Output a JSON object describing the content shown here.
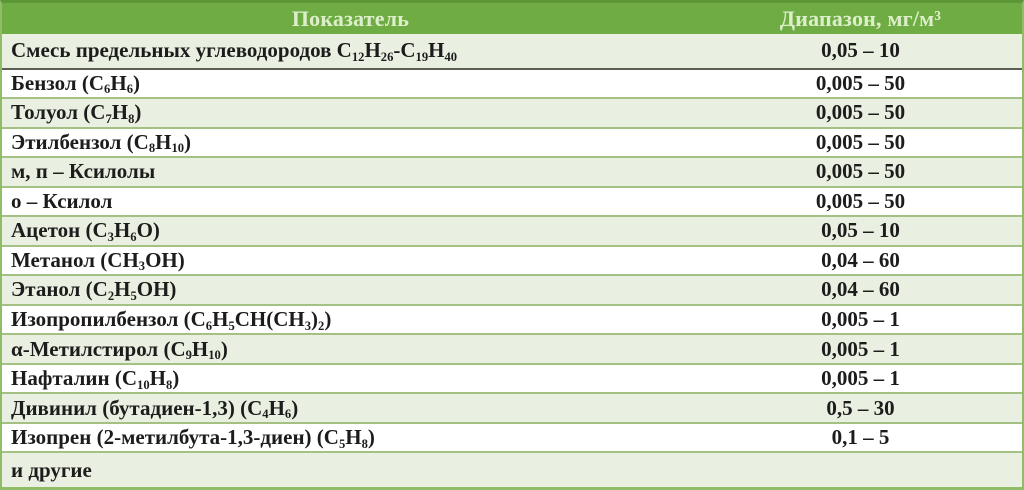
{
  "table": {
    "columns": [
      {
        "label": "Показатель"
      },
      {
        "label": "Диапазон, мг/м³"
      }
    ],
    "rows": [
      {
        "name": "Смесь предельных углеводородов C{12}H{26}-C{19}H{40}",
        "range": "0,05 – 10"
      },
      {
        "name": "Бензол (C{6}H{6})",
        "range": "0,005 – 50"
      },
      {
        "name": "Толуол (C{7}H{8})",
        "range": "0,005 – 50"
      },
      {
        "name": "Этилбензол (C{8}H{10})",
        "range": "0,005 – 50"
      },
      {
        "name": "м, п – Ксилолы",
        "range": "0,005 – 50"
      },
      {
        "name": "о – Ксилол",
        "range": "0,005 – 50"
      },
      {
        "name": "Ацетон (C{3}H{6}O)",
        "range": "0,05 – 10"
      },
      {
        "name": "Метанол (CH{3}OH)",
        "range": "0,04 – 60"
      },
      {
        "name": "Этанол (C{2}H{5}OH)",
        "range": "0,04 – 60"
      },
      {
        "name": "Изопропилбензол (C{6}H{5}CH(CH{3}){2})",
        "range": "0,005 – 1"
      },
      {
        "name": "α-Метилстирол (C{9}H{10})",
        "range": "0,005 – 1"
      },
      {
        "name": "Нафталин (C{10}H{8})",
        "range": "0,005 – 1"
      },
      {
        "name": "Дивинил (бутадиен-1,3) (C{4}H{6})",
        "range": "0,5 – 30"
      },
      {
        "name": "Изопрен (2-метилбута-1,3-диен) (C{5}H{8})",
        "range": "0,1 – 5"
      },
      {
        "name": "и другие",
        "range": ""
      }
    ]
  },
  "colors": {
    "header_bg": "#6fad44",
    "header_text": "#ddeecb",
    "row_alt_bg": "#eaf0e1",
    "row_bg": "#ffffff",
    "row_border": "#a4c184",
    "first_row_divider": "#5d6155",
    "outer_border": "#5d9637",
    "side_border": "#8fbc66",
    "text": "#1c1c1c"
  }
}
